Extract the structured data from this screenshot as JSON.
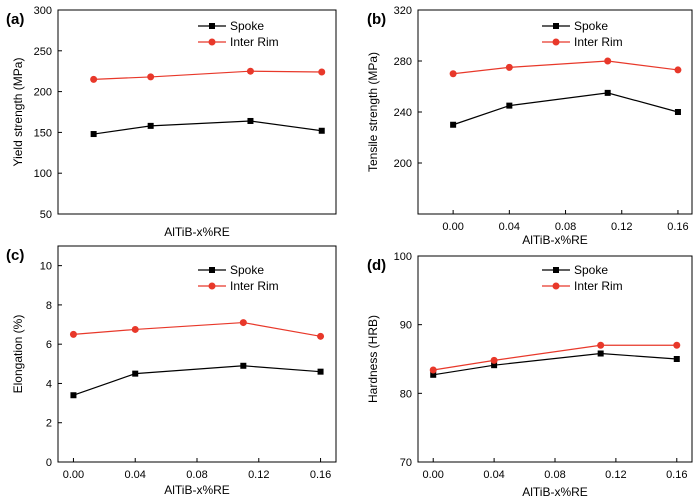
{
  "chart_data": [
    {
      "panel": "(a)",
      "type": "line",
      "xlabel": "AlTiB-x%RE",
      "ylabel": "Yield strength (MPa)",
      "ylim": [
        50,
        300
      ],
      "yticks": [
        50,
        100,
        150,
        200,
        250,
        300
      ],
      "xlim": [
        -0.025,
        0.17
      ],
      "xticks": [],
      "x": [
        0.0,
        0.04,
        0.11,
        0.16
      ],
      "series": [
        {
          "name": "Spoke",
          "color": "#000000",
          "marker": "square",
          "values": [
            148,
            158,
            164,
            152
          ]
        },
        {
          "name": "Inter Rim",
          "color": "#e8382a",
          "marker": "circle",
          "values": [
            215,
            218,
            225,
            224
          ]
        }
      ]
    },
    {
      "panel": "(b)",
      "type": "line",
      "xlabel": "AlTiB-x%RE",
      "ylabel": "Tensile strength (MPa)",
      "ylim": [
        160,
        320
      ],
      "yticks": [
        200,
        240,
        280,
        320
      ],
      "xlim": [
        -0.025,
        0.17
      ],
      "xticks": [
        "0.00",
        "0.04",
        "0.08",
        "0.12",
        "0.16"
      ],
      "x": [
        0.0,
        0.04,
        0.11,
        0.16
      ],
      "series": [
        {
          "name": "Spoke",
          "color": "#000000",
          "marker": "square",
          "values": [
            230,
            245,
            255,
            240
          ]
        },
        {
          "name": "Inter Rim",
          "color": "#e8382a",
          "marker": "circle",
          "values": [
            270,
            275,
            280,
            273
          ]
        }
      ]
    },
    {
      "panel": "(c)",
      "type": "line",
      "xlabel": "AlTiB-x%RE",
      "ylabel": "Elongation (%)",
      "ylim": [
        0,
        11
      ],
      "yticks": [
        0,
        2,
        4,
        6,
        8,
        10
      ],
      "xlim": [
        -0.01,
        0.17
      ],
      "xticks": [
        "0.00",
        "0.04",
        "0.08",
        "0.12",
        "0.16"
      ],
      "x": [
        0.0,
        0.04,
        0.11,
        0.16
      ],
      "series": [
        {
          "name": "Spoke",
          "color": "#000000",
          "marker": "square",
          "values": [
            3.4,
            4.5,
            4.9,
            4.6
          ]
        },
        {
          "name": "Inter Rim",
          "color": "#e8382a",
          "marker": "circle",
          "values": [
            6.5,
            6.75,
            7.1,
            6.4
          ]
        }
      ]
    },
    {
      "panel": "(d)",
      "type": "line",
      "xlabel": "AlTiB-x%RE",
      "ylabel": "Hardness (HRB)",
      "ylim": [
        70,
        100
      ],
      "yticks": [
        70,
        80,
        90,
        100
      ],
      "xlim": [
        -0.01,
        0.17
      ],
      "xticks": [
        "0.00",
        "0.04",
        "0.08",
        "0.12",
        "0.16"
      ],
      "x": [
        0.0,
        0.04,
        0.11,
        0.16
      ],
      "series": [
        {
          "name": "Spoke",
          "color": "#000000",
          "marker": "square",
          "values": [
            82.7,
            84.1,
            85.8,
            85.0
          ]
        },
        {
          "name": "Inter Rim",
          "color": "#e8382a",
          "marker": "circle",
          "values": [
            83.4,
            84.8,
            87.0,
            87.0
          ]
        }
      ]
    }
  ]
}
